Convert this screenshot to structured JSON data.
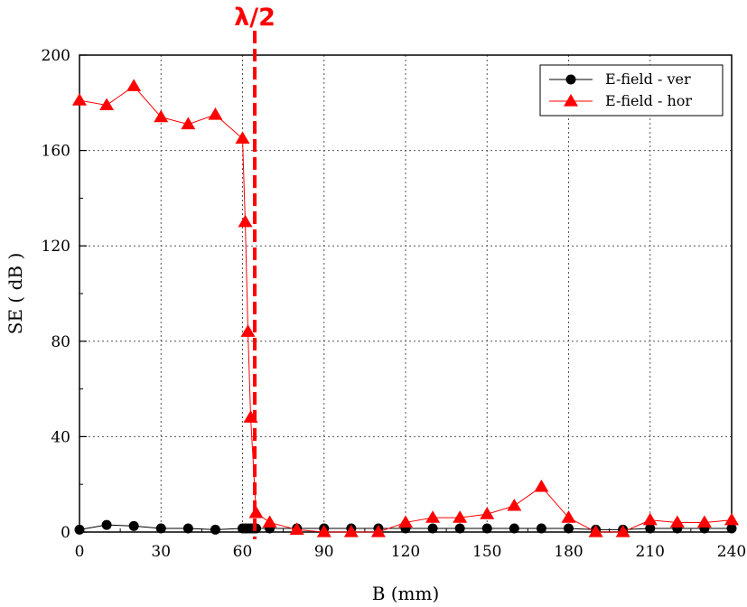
{
  "chart_data": {
    "type": "line",
    "xlabel": "B (mm)",
    "ylabel": "SE ( dB )",
    "xlim": [
      0,
      240
    ],
    "ylim": [
      0,
      200
    ],
    "xticks": [
      0,
      30,
      60,
      90,
      120,
      150,
      180,
      210,
      240
    ],
    "yticks": [
      0,
      40,
      80,
      120,
      160,
      200
    ],
    "grid": true,
    "legend_position": "top-right",
    "series": [
      {
        "name": "E-field - ver",
        "marker": "circle",
        "color": "#000000",
        "x": [
          0,
          10,
          20,
          30,
          40,
          50,
          60,
          61,
          62,
          63,
          64,
          65,
          70,
          80,
          90,
          100,
          110,
          120,
          130,
          140,
          150,
          160,
          170,
          180,
          190,
          200,
          210,
          220,
          230,
          240
        ],
        "y": [
          1,
          3,
          2.5,
          1.5,
          1.5,
          1,
          1.5,
          1.5,
          1.5,
          1.5,
          1.5,
          1.5,
          1.5,
          1.5,
          1.5,
          1.5,
          1.5,
          1.5,
          1.5,
          1.5,
          1.5,
          1.5,
          1.5,
          1.5,
          1,
          1,
          1.5,
          1.5,
          1.5,
          1.5
        ]
      },
      {
        "name": "E-field - hor",
        "marker": "triangle",
        "color": "#ff0000",
        "x": [
          0,
          10,
          20,
          30,
          40,
          50,
          60,
          61,
          62,
          63,
          65,
          70,
          80,
          90,
          100,
          110,
          120,
          130,
          140,
          150,
          160,
          170,
          180,
          190,
          200,
          210,
          220,
          230,
          240
        ],
        "y": [
          181,
          179,
          187,
          174,
          171,
          175,
          165,
          130,
          84,
          48,
          8,
          4,
          1,
          0,
          0,
          0,
          4,
          6,
          6,
          7.5,
          11,
          19,
          6,
          0,
          0,
          5,
          4,
          4,
          5
        ]
      }
    ],
    "annotations": [
      {
        "text": "λ/2",
        "x": 64.5,
        "color": "#ff0000",
        "style": "vertical-dashed-line"
      }
    ]
  }
}
